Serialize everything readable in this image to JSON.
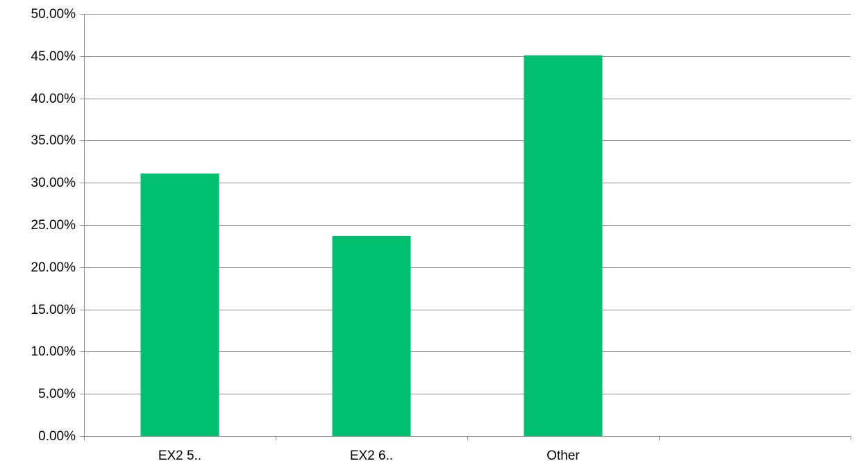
{
  "chart_data": {
    "type": "bar",
    "categories": [
      "EX2 5..",
      "EX2 6..",
      "Other"
    ],
    "slot_count": 4,
    "values": [
      31.1,
      23.7,
      45.1
    ],
    "ylim": [
      0,
      50
    ],
    "y_step": 5,
    "y_tick_labels": [
      "0.00%",
      "5.00%",
      "10.00%",
      "15.00%",
      "20.00%",
      "25.00%",
      "30.00%",
      "35.00%",
      "40.00%",
      "45.00%",
      "50.00%"
    ],
    "grid": true,
    "legend": "none",
    "bar_color": "#00BF6F",
    "grid_color": "#8C8C8C"
  }
}
